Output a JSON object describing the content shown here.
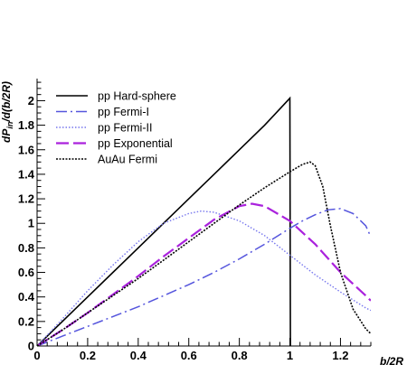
{
  "chart_data": {
    "type": "line",
    "title": "",
    "xlabel": "b/2R",
    "ylabel": "dP_in/d(b/2R)",
    "xlim": [
      0,
      1.32
    ],
    "ylim": [
      0,
      2.18
    ],
    "x_ticks": [
      "0",
      "0.2",
      "0.4",
      "0.6",
      "0.8",
      "1",
      "1.2"
    ],
    "y_ticks": [
      "0",
      "0.2",
      "0.4",
      "0.6",
      "0.8",
      "1",
      "1.2",
      "1.4",
      "1.6",
      "1.8",
      "2"
    ],
    "grid": false,
    "legend_position": "top-left",
    "series": [
      {
        "name": "pp Hard-sphere",
        "color": "#000000",
        "dash": "solid",
        "x": [
          0,
          0.1,
          0.2,
          0.3,
          0.4,
          0.5,
          0.6,
          0.7,
          0.8,
          0.9,
          1.0,
          1.001,
          1.002
        ],
        "y": [
          0,
          0.2,
          0.4,
          0.6,
          0.8,
          1.0,
          1.2,
          1.4,
          1.6,
          1.8,
          2.02,
          1.0,
          0
        ]
      },
      {
        "name": "pp Fermi-I",
        "color": "#5555dd",
        "dash": "dashdot",
        "x": [
          0,
          0.1,
          0.2,
          0.3,
          0.4,
          0.5,
          0.6,
          0.7,
          0.8,
          0.9,
          1.0,
          1.05,
          1.1,
          1.15,
          1.2,
          1.25,
          1.3,
          1.32
        ],
        "y": [
          0,
          0.08,
          0.16,
          0.24,
          0.32,
          0.41,
          0.5,
          0.6,
          0.71,
          0.83,
          0.96,
          1.02,
          1.07,
          1.11,
          1.12,
          1.08,
          0.98,
          0.89
        ]
      },
      {
        "name": "pp Fermi-II",
        "color": "#7777ee",
        "dash": "dotted",
        "x": [
          0,
          0.1,
          0.2,
          0.3,
          0.4,
          0.5,
          0.6,
          0.65,
          0.7,
          0.8,
          0.9,
          1.0,
          1.1,
          1.2,
          1.3,
          1.32
        ],
        "y": [
          0,
          0.22,
          0.45,
          0.66,
          0.85,
          1.0,
          1.08,
          1.1,
          1.09,
          1.02,
          0.9,
          0.74,
          0.58,
          0.44,
          0.31,
          0.29
        ]
      },
      {
        "name": "pp Exponential",
        "color": "#aa22dd",
        "dash": "longdash",
        "x": [
          0,
          0.1,
          0.2,
          0.3,
          0.4,
          0.5,
          0.6,
          0.7,
          0.8,
          0.85,
          0.9,
          1.0,
          1.1,
          1.2,
          1.3,
          1.32
        ],
        "y": [
          0,
          0.13,
          0.27,
          0.42,
          0.57,
          0.73,
          0.88,
          1.03,
          1.14,
          1.16,
          1.14,
          1.02,
          0.83,
          0.6,
          0.41,
          0.37
        ]
      },
      {
        "name": "AuAu Fermi",
        "color": "#000000",
        "dash": "finedot",
        "x": [
          0,
          0.1,
          0.2,
          0.3,
          0.4,
          0.5,
          0.6,
          0.7,
          0.8,
          0.9,
          1.0,
          1.05,
          1.08,
          1.1,
          1.13,
          1.16,
          1.2,
          1.25,
          1.3,
          1.32
        ],
        "y": [
          0,
          0.13,
          0.27,
          0.41,
          0.55,
          0.7,
          0.85,
          1.0,
          1.15,
          1.29,
          1.42,
          1.48,
          1.5,
          1.47,
          1.3,
          0.98,
          0.6,
          0.3,
          0.14,
          0.1
        ]
      }
    ]
  }
}
